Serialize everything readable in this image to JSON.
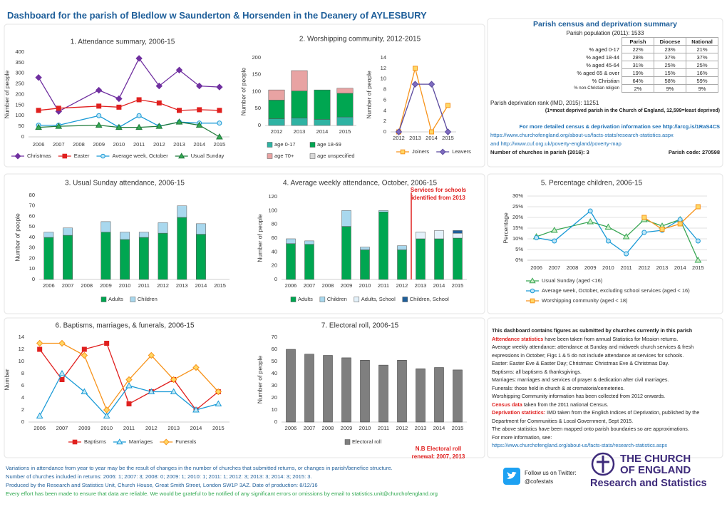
{
  "title": "Dashboard for the parish of Bledlow w Saunderton & Horsenden in the Deanery of AYLESBURY",
  "chart_data": [
    {
      "type": "line",
      "title": "1. Attendance summary, 2006-15",
      "ylabel": "Number of people",
      "x": [
        2006,
        2007,
        2009,
        2010,
        2011,
        2012,
        2013,
        2014,
        2015
      ],
      "xlim": [
        2005.5,
        2015.5
      ],
      "xticks": [
        2006,
        2007,
        2008,
        2009,
        2010,
        2011,
        2012,
        2013,
        2014,
        2015
      ],
      "ylim": [
        0,
        400
      ],
      "yticks": [
        0,
        50,
        100,
        150,
        200,
        250,
        300,
        350,
        400
      ],
      "grid": false,
      "legend": "bottom",
      "series": [
        {
          "name": "Christmas",
          "color": "#7030a0",
          "fill": "#7030a0",
          "marker": "diamond",
          "values": [
            280,
            120,
            220,
            180,
            370,
            240,
            315,
            240,
            235
          ]
        },
        {
          "name": "Easter",
          "color": "#e0201f",
          "fill": "#e0201f",
          "marker": "square",
          "values": [
            125,
            135,
            145,
            140,
            175,
            160,
            125,
            128,
            125
          ]
        },
        {
          "name": "Average week, October",
          "color": "#1a9ad6",
          "fill": "#bfe6f7",
          "marker": "circle",
          "values": [
            55,
            55,
            100,
            45,
            100,
            50,
            70,
            65,
            65
          ]
        },
        {
          "name": "Usual Sunday",
          "color": "#1f7a3a",
          "fill": "#33a852",
          "marker": "triangle",
          "values": [
            45,
            50,
            55,
            45,
            45,
            50,
            70,
            55,
            0
          ]
        }
      ]
    },
    {
      "type": "stacked-bar",
      "title": "2. Worshipping community, 2012-2015",
      "ylabel": "Number of people",
      "categories": [
        "2012",
        "2013",
        "2014",
        "2015"
      ],
      "ylim": [
        0,
        200
      ],
      "yticks": [
        0,
        50,
        100,
        150,
        200
      ],
      "grid": false,
      "legend": "bottom",
      "series": [
        {
          "name": "age 0-17",
          "color": "#2fb3a3",
          "values": [
            20,
            22,
            18,
            25
          ]
        },
        {
          "name": "age 18-69",
          "color": "#00a651",
          "values": [
            55,
            80,
            87,
            70
          ]
        },
        {
          "name": "age 70+",
          "color": "#e8a3a3",
          "values": [
            30,
            60,
            0,
            15
          ]
        },
        {
          "name": "age unspecified",
          "color": "#d9d9d9",
          "values": [
            0,
            0,
            0,
            0
          ]
        }
      ]
    },
    {
      "type": "line",
      "ylabel": "Number of people",
      "categories": [
        "2012",
        "2013",
        "2014",
        "2015"
      ],
      "ylim": [
        0,
        14
      ],
      "yticks": [
        0,
        2,
        4,
        6,
        8,
        10,
        12,
        14
      ],
      "grid": false,
      "legend": "bottom",
      "series": [
        {
          "name": "Joiners",
          "color": "#f7941d",
          "fill": "#ffd866",
          "marker": "square",
          "values": [
            0,
            12,
            0,
            5
          ]
        },
        {
          "name": "Leavers",
          "color": "#5b4a9e",
          "fill": "#7e6cc0",
          "marker": "diamond",
          "values": [
            0,
            9,
            9,
            0
          ]
        }
      ]
    },
    {
      "type": "stacked-bar",
      "title": "3. Usual Sunday attendance, 2006-15",
      "ylabel": "Number of people",
      "categories": [
        "2006",
        "2007",
        "2008",
        "2009",
        "2010",
        "2011",
        "2012",
        "2013",
        "2014",
        "2015"
      ],
      "ylim": [
        0,
        80
      ],
      "yticks": [
        0,
        10,
        20,
        30,
        40,
        50,
        60,
        70,
        80
      ],
      "grid": false,
      "legend": "bottom",
      "series": [
        {
          "name": "Adults",
          "color": "#00a651",
          "values": [
            40,
            42,
            null,
            45,
            38,
            40,
            44,
            59,
            43,
            0
          ]
        },
        {
          "name": "Children",
          "color": "#a9d8ee",
          "values": [
            5,
            7,
            null,
            10,
            7,
            5,
            10,
            11,
            10,
            0
          ]
        }
      ]
    },
    {
      "type": "stacked-bar",
      "title": "4. Average weekly attendance, October, 2006-15",
      "ylabel": "Number of people",
      "categories": [
        "2006",
        "2007",
        "2008",
        "2009",
        "2010",
        "2011",
        "2012",
        "2013",
        "2014",
        "2015"
      ],
      "ylim": [
        0,
        120
      ],
      "yticks": [
        0,
        20,
        40,
        60,
        80,
        100,
        120
      ],
      "grid": false,
      "legend": "bottom",
      "annotation": [
        "Services for schools",
        "identified from 2013"
      ],
      "series": [
        {
          "name": "Adults",
          "color": "#00a651",
          "values": [
            52,
            51,
            null,
            77,
            43,
            98,
            43,
            59,
            59,
            60
          ]
        },
        {
          "name": "Children",
          "color": "#a9d8ee",
          "values": [
            7,
            5,
            null,
            23,
            4,
            2,
            6,
            0,
            0,
            0
          ]
        },
        {
          "name": "Adults, School",
          "color": "#e3f1fa",
          "values": [
            0,
            0,
            null,
            0,
            0,
            0,
            0,
            10,
            12,
            7
          ]
        },
        {
          "name": "Children, School",
          "color": "#1f5f9a",
          "values": [
            0,
            0,
            null,
            0,
            0,
            0,
            0,
            0,
            0,
            4
          ]
        }
      ]
    },
    {
      "type": "line",
      "title": "5. Percentage children, 2006-15",
      "ylabel": "Percentage",
      "x": [
        2006,
        2007,
        2009,
        2010,
        2011,
        2012,
        2013,
        2014,
        2015
      ],
      "xlim": [
        2005.5,
        2015.5
      ],
      "xticks": [
        2006,
        2007,
        2008,
        2009,
        2010,
        2011,
        2012,
        2013,
        2014,
        2015
      ],
      "ylim": [
        0,
        30
      ],
      "yticks": [
        {
          "value": 0,
          "label": "0%"
        },
        {
          "value": 5,
          "label": "5%"
        },
        {
          "value": 10,
          "label": "10%"
        },
        {
          "value": 15,
          "label": "15%"
        },
        {
          "value": 20,
          "label": "20%"
        },
        {
          "value": 25,
          "label": "25%"
        },
        {
          "value": 30,
          "label": "30%"
        }
      ],
      "grid": true,
      "legend": "bottom",
      "series": [
        {
          "name": "Usual Sunday (aged <16)",
          "color": "#3aa655",
          "fill": "#c9eec4",
          "marker": "triangle",
          "values": [
            11,
            14,
            18,
            15.5,
            11,
            19,
            16,
            19,
            0
          ]
        },
        {
          "name": "Average week, October, excluding school services (aged < 16)",
          "color": "#1a9ad6",
          "fill": "#bfe6f7",
          "marker": "circle",
          "values": [
            10.5,
            9,
            23,
            9,
            3,
            13,
            14,
            19,
            9
          ]
        },
        {
          "name": "Worshipping community (aged < 18)",
          "color": "#f7941d",
          "fill": "#ffd866",
          "marker": "square",
          "values": [
            null,
            null,
            null,
            null,
            null,
            20,
            14.5,
            17,
            25
          ]
        }
      ]
    },
    {
      "type": "line",
      "title": "6. Baptisms, marriages, & funerals, 2006-15",
      "ylabel": "Number",
      "categories": [
        "2006",
        "2007",
        "2009",
        "2010",
        "2011",
        "2012",
        "2013",
        "2014",
        "2015"
      ],
      "ylim": [
        0,
        14
      ],
      "yticks": [
        0,
        2,
        4,
        6,
        8,
        10,
        12,
        14
      ],
      "grid": false,
      "legend": "bottom",
      "series": [
        {
          "name": "Baptisms",
          "color": "#e0201f",
          "fill": "#e0201f",
          "marker": "square",
          "values": [
            12,
            7,
            12,
            13,
            3,
            5,
            7,
            2,
            5
          ]
        },
        {
          "name": "Marriages",
          "color": "#1a9ad6",
          "fill": "#c5ecf7",
          "marker": "triangle",
          "values": [
            1,
            8,
            5,
            1,
            6,
            5,
            5,
            2,
            3
          ]
        },
        {
          "name": "Funerals",
          "color": "#f7941d",
          "fill": "#ffd866",
          "marker": "diamond",
          "values": [
            13,
            13,
            11,
            2,
            7,
            11,
            7,
            9,
            5
          ]
        }
      ]
    },
    {
      "type": "bar",
      "title": "7. Electoral roll, 2006-15",
      "ylabel": "Number of people",
      "categories": [
        "2006",
        "2007",
        "2008",
        "2009",
        "2010",
        "2011",
        "2012",
        "2013",
        "2014",
        "2015"
      ],
      "ylim": [
        0,
        70
      ],
      "yticks": [
        0,
        10,
        20,
        30,
        40,
        50,
        60,
        70
      ],
      "grid": false,
      "legend": "bottom",
      "annotation": [
        "N.B Electoral roll",
        "renewal: 2007, 2013"
      ],
      "series": [
        {
          "name": "Electoral roll",
          "color": "#7f7f7f",
          "values": [
            60,
            56,
            55,
            53,
            51,
            47,
            51,
            44,
            45,
            43
          ]
        }
      ]
    }
  ],
  "census": {
    "title": "Parish census and deprivation summary",
    "population": "Parish population (2011): 1533",
    "header": [
      "Parish",
      "Diocese",
      "National"
    ],
    "rows": [
      [
        "% aged 0-17",
        "22%",
        "23%",
        "21%"
      ],
      [
        "% aged 18-44",
        "28%",
        "37%",
        "37%"
      ],
      [
        "% aged 45-64",
        "31%",
        "25%",
        "25%"
      ],
      [
        "% aged 65 & over",
        "19%",
        "15%",
        "16%"
      ],
      [
        "% Christian",
        "64%",
        "58%",
        "59%"
      ],
      [
        "% non-Christian religion",
        "2%",
        "9%",
        "9%"
      ]
    ],
    "deprivation": "Parish deprivation rank (IMD, 2015): 11251",
    "deprivation_note": "(1=most deprived parish in the Church of England, 12,599=least deprived)",
    "more_info": "For more detailed census & deprivation information see http://arcg.is/1RaS4CS",
    "link_1": "https://www.churchofengland.org/about-us/facts-stats/research-statistics.aspx",
    "link_2": "and http://www.cuf.org.uk/poverty-england/poverty-map",
    "churches": "Number of churches in parish (2016): 3",
    "parish_code": "Parish code: 270598"
  },
  "notes": [
    {
      "text": "This dashboard contains figures as submitted by churches currently in this parish"
    },
    {
      "red": "Attendance statistics",
      "text": "have been taken from annual Statistics for Mission returns."
    },
    {
      "text": "Average weekly attendance: attendance at Sunday and midweek church services & fresh expressions in October; Figs 1 & 5 do not include attendance at services for schools."
    },
    {
      "text": "Easter: Easter Eve & Easter Day; Christmas: Christmas Eve & Christmas Day."
    },
    {
      "text": "Baptisms: all baptisms & thanksgivings."
    },
    {
      "text": "Marriages: marriages and services of prayer & dedication after civil marriages."
    },
    {
      "text": "Funerals: those held in church & at crematoria/cemeteries."
    },
    {
      "text": "Worshipping Community information has been collected from 2012 onwards."
    },
    {
      "red": "Census data",
      "text": "taken from the 2011 national Census."
    },
    {
      "red": "Deprivation statistics:",
      "text": "IMD taken from the English Indices of Deprivation, published by the Department for Communities & Local Government, Sept 2015."
    },
    {
      "text": "The above statistics have been mapped onto parish boundaries so are approximations."
    },
    {
      "text": "For more information, see:"
    },
    {
      "text": "https://www.churchofengland.org/about-us/facts-stats/research-statistics.aspx"
    }
  ],
  "footer": [
    "Variations in attendance from year to year may be the result of changes in the number of churches that submitted returns, or changes in parish/benefice structure.",
    "Number of churches included in returns: 2006: 1; 2007: 3; 2008: 0; 2009: 1; 2010: 1; 2011: 1; 2012: 3; 2013: 3; 2014: 3; 2015: 3.",
    "Produced by the Research and Statistics Unit, Church House, Great Smith Street, London SW1P 3AZ. Date of production: 8/12/16",
    "Every effort has been made to ensure that data are reliable. We would be grateful to be notified of any significant errors or omissions by email to statistics.unit@churchofengland.org"
  ],
  "twitter": [
    "Follow us on Twitter:",
    "@cofestats"
  ],
  "logo": [
    "THE CHURCH",
    "OF ENGLAND",
    "Research and Statistics"
  ]
}
